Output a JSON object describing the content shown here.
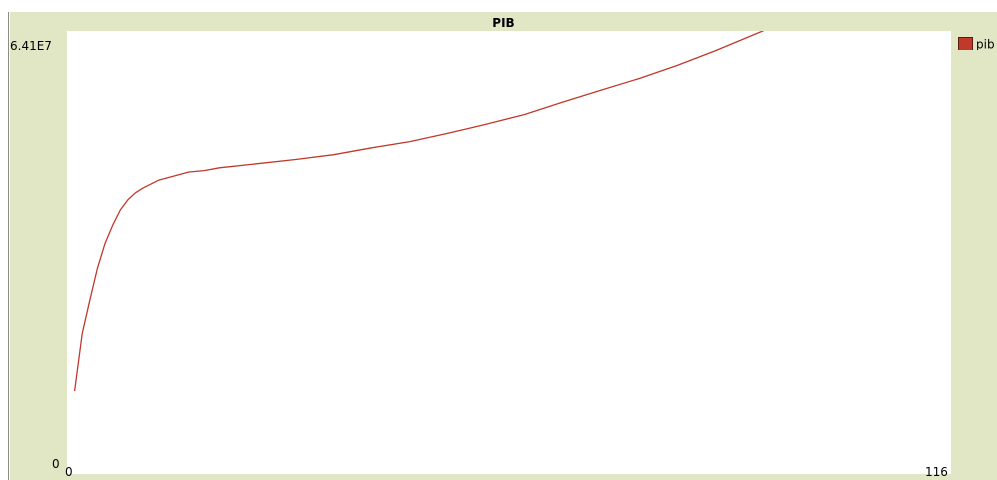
{
  "plot": {
    "title": "PIB",
    "y_max_label": "6.41E7",
    "y_min_label": "0",
    "x_min_label": "0",
    "x_max_label": "116",
    "legend": [
      {
        "name": "pib",
        "color": "#c0392b"
      }
    ]
  },
  "chart_data": {
    "type": "line",
    "title": "PIB",
    "xlim": [
      0,
      116
    ],
    "ylim": [
      0,
      64100000
    ],
    "grid": false,
    "legend_position": "right",
    "series": [
      {
        "name": "pib",
        "color": "#c0392b",
        "x": [
          1,
          2,
          3,
          4,
          5,
          6,
          7,
          8,
          9,
          10,
          12,
          14,
          16,
          18,
          20,
          25,
          30,
          35,
          40,
          45,
          50,
          55,
          60,
          65,
          70,
          75,
          80,
          85,
          90,
          95,
          97
        ],
        "y": [
          12000000,
          20300000,
          25200000,
          29800000,
          33400000,
          36000000,
          38200000,
          39700000,
          40700000,
          41400000,
          42500000,
          43100000,
          43700000,
          43900000,
          44300000,
          44900000,
          45500000,
          46200000,
          47200000,
          48100000,
          49300000,
          50600000,
          52000000,
          53800000,
          55500000,
          57200000,
          59100000,
          61200000,
          63500000,
          65800000,
          67000000
        ]
      }
    ]
  }
}
